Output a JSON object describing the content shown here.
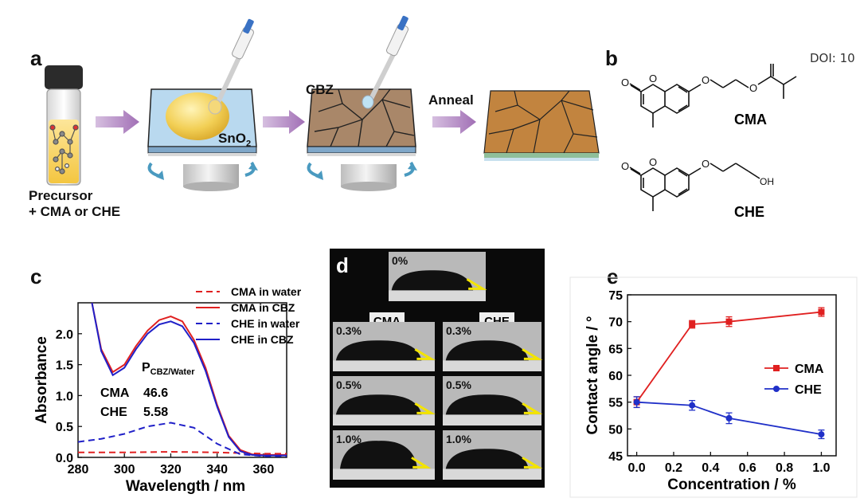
{
  "doi": "DOI: 10",
  "panel_a": {
    "letter": "a",
    "precursor_line1": "Precursor",
    "precursor_line2": "+ CMA or CHE",
    "sno2_label": "SnO",
    "sno2_sub": "2",
    "cbz_label": "CBZ",
    "anneal_label": "Anneal",
    "colors": {
      "arrow": "#a879b8",
      "droplet": "#f2cf55",
      "film": "#a98769",
      "annealed": "#c2843f",
      "substrate_blue": "#b9d9ef"
    }
  },
  "panel_b": {
    "letter": "b",
    "mol1_name": "CMA",
    "mol2_name": "CHE",
    "atom_O": "O",
    "atom_OH": "OH"
  },
  "panel_c": {
    "letter": "c"
  },
  "panel_d": {
    "letter": "d",
    "top_label": "0%",
    "col_labels": [
      "CMA",
      "CHE"
    ],
    "rows": [
      {
        "cma": "0.3%",
        "che": "0.3%"
      },
      {
        "cma": "0.5%",
        "che": "0.5%"
      },
      {
        "cma": "1.0%",
        "che": "1.0%"
      }
    ]
  },
  "panel_e": {
    "letter": "e"
  },
  "chart_data": [
    {
      "type": "line",
      "title": "",
      "xlabel": "Wavelength / nm",
      "ylabel": "Absorbance",
      "xlim": [
        280,
        370
      ],
      "ylim": [
        0,
        2.5
      ],
      "xticks": [
        "280",
        "300",
        "320",
        "340",
        "360"
      ],
      "yticks": [
        "0.0",
        "0.5",
        "1.0",
        "1.5",
        "2.0"
      ],
      "legend_position": "top-right",
      "annotation": {
        "header_main": "P",
        "header_sub": "CBZ/Water",
        "rows": [
          {
            "name": "CMA",
            "value": "46.6"
          },
          {
            "name": "CHE",
            "value": "5.58"
          }
        ]
      },
      "series": [
        {
          "name": "CMA in water",
          "color": "#e02020",
          "dash": true,
          "x": [
            280,
            300,
            320,
            340,
            360,
            370
          ],
          "y": [
            0.08,
            0.08,
            0.09,
            0.08,
            0.06,
            0.06
          ]
        },
        {
          "name": "CMA in CBZ",
          "color": "#e02020",
          "dash": false,
          "x": [
            286,
            290,
            295,
            300,
            305,
            310,
            315,
            320,
            325,
            330,
            335,
            340,
            345,
            350,
            355,
            360,
            370
          ],
          "y": [
            2.5,
            1.75,
            1.38,
            1.5,
            1.8,
            2.05,
            2.22,
            2.28,
            2.2,
            1.9,
            1.45,
            0.85,
            0.35,
            0.12,
            0.05,
            0.04,
            0.04
          ]
        },
        {
          "name": "CHE in water",
          "color": "#2020c8",
          "dash": true,
          "x": [
            280,
            290,
            300,
            310,
            320,
            330,
            340,
            350,
            360,
            370
          ],
          "y": [
            0.25,
            0.3,
            0.38,
            0.5,
            0.56,
            0.48,
            0.22,
            0.05,
            0.02,
            0.02
          ]
        },
        {
          "name": "CHE in CBZ",
          "color": "#2020c8",
          "dash": false,
          "x": [
            286,
            290,
            295,
            300,
            305,
            310,
            315,
            320,
            325,
            330,
            335,
            340,
            345,
            350,
            355,
            360,
            370
          ],
          "y": [
            2.5,
            1.72,
            1.33,
            1.45,
            1.75,
            2.0,
            2.15,
            2.2,
            2.12,
            1.85,
            1.4,
            0.82,
            0.33,
            0.1,
            0.04,
            0.03,
            0.03
          ]
        }
      ]
    },
    {
      "type": "line",
      "title": "",
      "xlabel": "Concentration / %",
      "ylabel": "Contact angle / °",
      "xlim": [
        -0.05,
        1.08
      ],
      "ylim": [
        45,
        75
      ],
      "xticks": [
        "0.0",
        "0.2",
        "0.4",
        "0.6",
        "0.8",
        "1.0"
      ],
      "yticks": [
        "45",
        "50",
        "55",
        "60",
        "65",
        "70",
        "75"
      ],
      "legend_position": "right",
      "series": [
        {
          "name": "CMA",
          "color": "#e02020",
          "marker": "square",
          "x": [
            0.0,
            0.3,
            0.5,
            1.0
          ],
          "y": [
            55,
            69.5,
            70,
            71.8
          ],
          "err": [
            1,
            0.7,
            0.9,
            0.8
          ]
        },
        {
          "name": "CHE",
          "color": "#2030c8",
          "marker": "circle",
          "x": [
            0.0,
            0.3,
            0.5,
            1.0
          ],
          "y": [
            55,
            54.4,
            52,
            49
          ],
          "err": [
            1,
            0.9,
            1,
            0.8
          ]
        }
      ]
    }
  ]
}
